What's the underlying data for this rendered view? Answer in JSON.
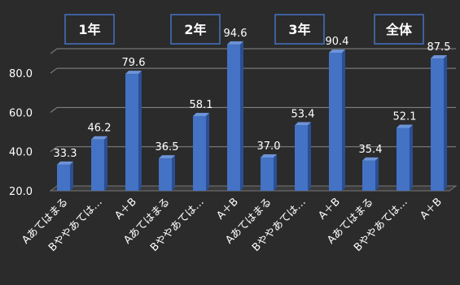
{
  "chart_data": {
    "type": "bar",
    "groups": [
      "1年",
      "2年",
      "3年",
      "全体"
    ],
    "categories": [
      "Aあてはまる",
      "Bややあては…",
      "A＋B"
    ],
    "series": [
      {
        "values": [
          33.3,
          46.2,
          79.6
        ]
      },
      {
        "values": [
          36.5,
          58.1,
          94.6
        ]
      },
      {
        "values": [
          37.0,
          53.4,
          90.4
        ]
      },
      {
        "values": [
          35.4,
          52.1,
          87.5
        ]
      }
    ],
    "value_labels": [
      [
        "33.3",
        "46.2",
        "79.6"
      ],
      [
        "36.5",
        "58.1",
        "94.6"
      ],
      [
        "37.0",
        "53.4",
        "90.4"
      ],
      [
        "35.4",
        "52.1",
        "87.5"
      ]
    ],
    "ylim": [
      20,
      90
    ],
    "yticks": [
      "20.0",
      "40.0",
      "60.0",
      "80.0"
    ],
    "ytick_values": [
      20,
      40,
      60,
      80
    ],
    "grid": true,
    "legend": "none",
    "bar_color": "#4472c4",
    "group_box_color": "#4472c4",
    "text_color": "#ffffff"
  }
}
